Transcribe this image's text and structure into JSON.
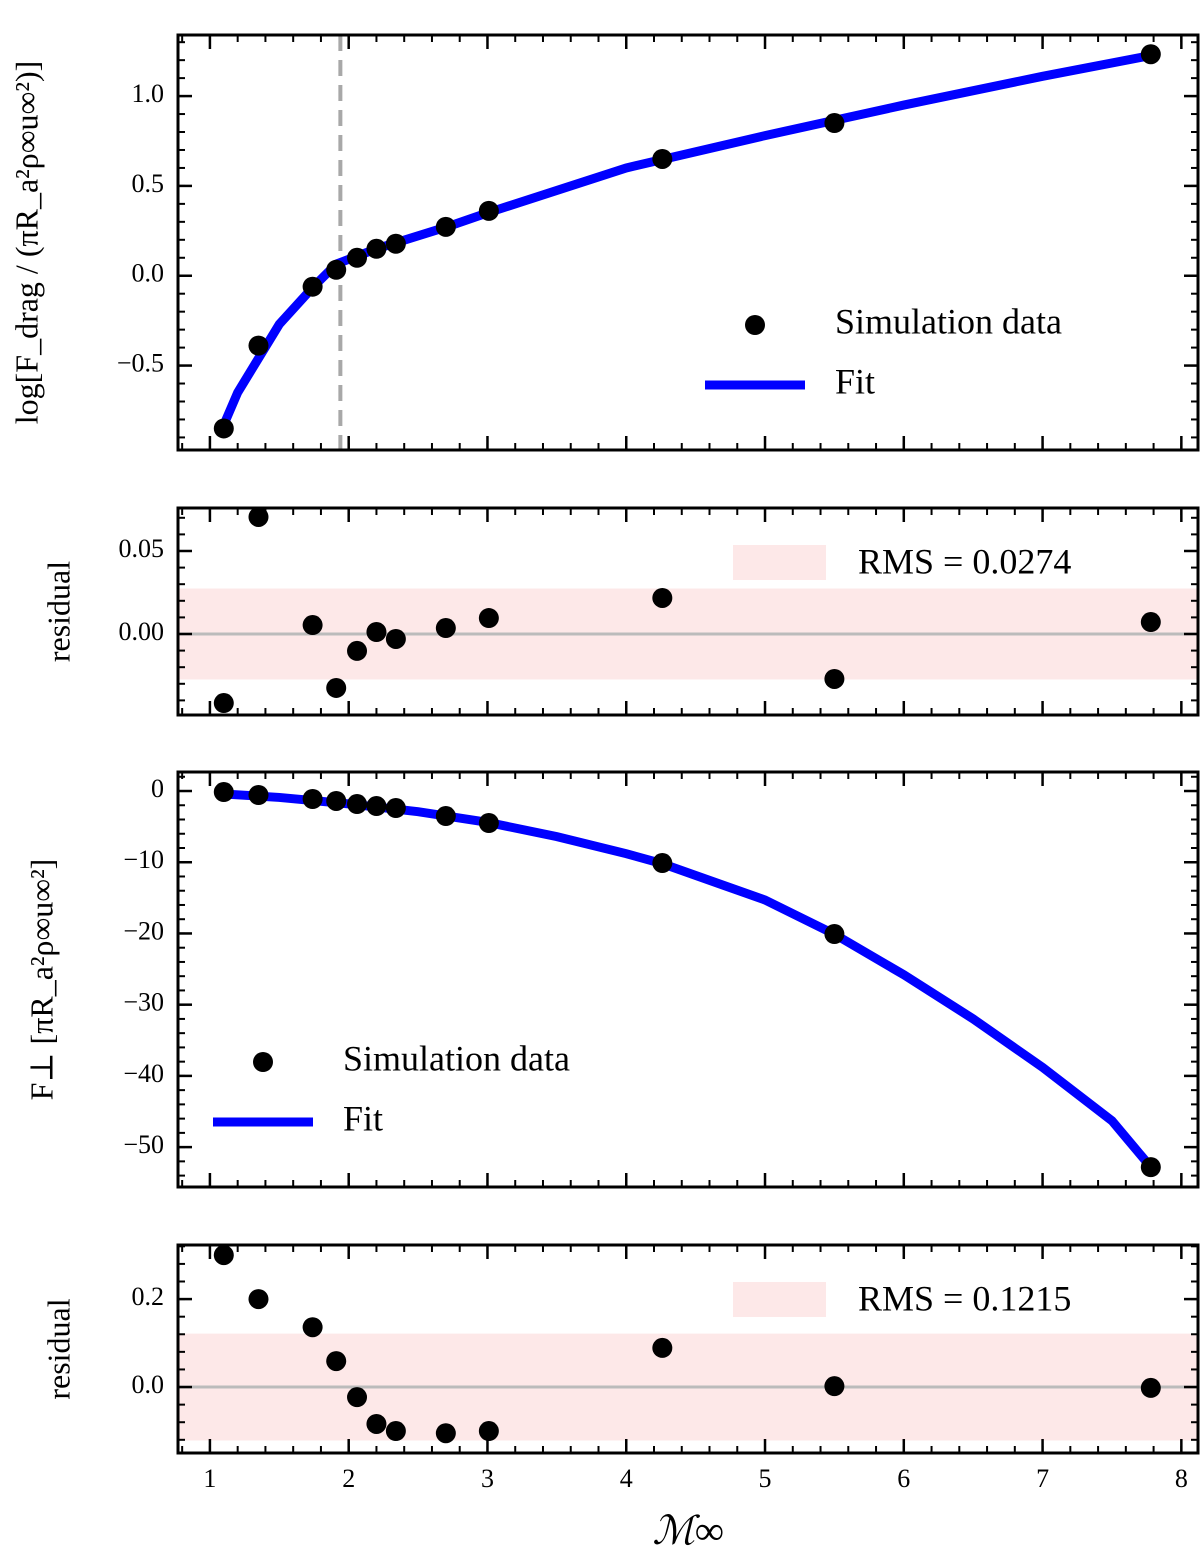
{
  "chart_data": [
    {
      "type": "scatter",
      "ylabel": "log[F_drag / (πR_a²ρ∞u∞²)]",
      "xlim": [
        0.77,
        8.12
      ],
      "xticks": [
        1,
        2,
        3,
        4,
        5,
        6,
        7,
        8
      ],
      "ylim": [
        -0.97,
        1.34
      ],
      "yticks": [
        {
          "value": -0.5,
          "label": "−0.5"
        },
        {
          "value": 0,
          "label": "0.0"
        },
        0.5,
        {
          "value": 1,
          "label": "1.0"
        }
      ],
      "vline": 1.94,
      "vline_color": "#a8a8a8",
      "legend": "lower right",
      "series": [
        {
          "name": "Simulation data",
          "mode": "markers",
          "color": "#000000",
          "x": [
            1.1,
            1.35,
            1.74,
            1.91,
            2.06,
            2.2,
            2.34,
            2.7,
            3.01,
            4.26,
            5.5,
            7.78
          ],
          "values": [
            -0.85,
            -0.389,
            -0.061,
            0.033,
            0.1,
            0.15,
            0.178,
            0.272,
            0.361,
            0.65,
            0.85,
            1.233
          ]
        },
        {
          "name": "Fit",
          "mode": "line",
          "color": "#0000ff",
          "x": [
            1.1,
            1.2,
            1.35,
            1.5,
            1.74,
            1.91,
            2.2,
            2.7,
            3.0,
            4.0,
            5.0,
            6.0,
            7.0,
            7.78
          ],
          "values": [
            -0.83,
            -0.65,
            -0.46,
            -0.27,
            -0.066,
            0.065,
            0.15,
            0.27,
            0.35,
            0.6,
            0.78,
            0.95,
            1.11,
            1.226
          ]
        }
      ]
    },
    {
      "type": "residual",
      "ylabel": "residual",
      "xlim": [
        0.77,
        8.12
      ],
      "xticks": [
        1,
        2,
        3,
        4,
        5,
        6,
        7,
        8
      ],
      "ylim": [
        -0.0488,
        0.0759
      ],
      "yticks": [
        {
          "value": 0,
          "label": "0.00"
        },
        0.05
      ],
      "hline": 0,
      "rms": 0.0274,
      "rms_label": "RMS = 0.0274",
      "band_color": "#fde8e8",
      "legend": "upper right",
      "series": [
        {
          "mode": "markers",
          "color": "#000000",
          "x": [
            1.1,
            1.35,
            1.74,
            1.91,
            2.06,
            2.2,
            2.34,
            2.7,
            3.01,
            4.26,
            5.5,
            7.78
          ],
          "values": [
            -0.0416,
            0.0705,
            0.0054,
            -0.0325,
            -0.0102,
            0.0012,
            -0.003,
            0.0036,
            0.0096,
            0.0217,
            -0.0271,
            0.0072
          ]
        }
      ]
    },
    {
      "type": "scatter",
      "ylabel": "F⊥ [πR_a²ρ∞u∞²]",
      "xlim": [
        0.77,
        8.12
      ],
      "xticks": [
        1,
        2,
        3,
        4,
        5,
        6,
        7,
        8
      ],
      "ylim": [
        -55.6,
        2.67
      ],
      "yticks": [
        {
          "value": -50,
          "label": "−50"
        },
        {
          "value": -40,
          "label": "−40"
        },
        {
          "value": -30,
          "label": "−30"
        },
        {
          "value": -20,
          "label": "−20"
        },
        {
          "value": -10,
          "label": "−10"
        },
        0
      ],
      "legend": "lower left",
      "series": [
        {
          "name": "Simulation data",
          "mode": "markers",
          "color": "#000000",
          "x": [
            1.1,
            1.35,
            1.74,
            1.91,
            2.06,
            2.2,
            2.34,
            2.7,
            3.01,
            4.26,
            5.5,
            7.78
          ],
          "values": [
            -0.14,
            -0.56,
            -1.12,
            -1.4,
            -1.83,
            -2.11,
            -2.39,
            -3.51,
            -4.49,
            -10.11,
            -20.08,
            -52.81
          ]
        },
        {
          "name": "Fit",
          "mode": "line",
          "color": "#0000ff",
          "x": [
            1.1,
            1.5,
            2.0,
            2.5,
            3.0,
            3.5,
            4.0,
            4.26,
            5.0,
            5.5,
            6.0,
            6.5,
            7.0,
            7.5,
            7.78
          ],
          "values": [
            -0.42,
            -0.9,
            -1.8,
            -2.9,
            -4.4,
            -6.4,
            -8.8,
            -10.2,
            -15.3,
            -20.1,
            -25.8,
            -32.0,
            -38.8,
            -46.3,
            -52.8
          ]
        }
      ]
    },
    {
      "type": "residual",
      "ylabel": "residual",
      "xlabel": "ℳ∞",
      "xlim": [
        0.77,
        8.12
      ],
      "xticks": [
        1,
        2,
        3,
        4,
        5,
        6,
        7,
        8
      ],
      "ylim": [
        -0.15,
        0.323
      ],
      "yticks": [
        {
          "value": 0,
          "label": "0.0"
        },
        0.2
      ],
      "hline": 0,
      "rms": 0.1215,
      "rms_label": "RMS = 0.1215",
      "band_color": "#fde8e8",
      "legend": "upper right",
      "series": [
        {
          "mode": "markers",
          "color": "#000000",
          "x": [
            1.1,
            1.35,
            1.74,
            1.91,
            2.06,
            2.2,
            2.34,
            2.7,
            3.01,
            4.26,
            5.5,
            7.78
          ],
          "values": [
            0.3,
            0.2,
            0.136,
            0.059,
            -0.023,
            -0.084,
            -0.1,
            -0.105,
            -0.1,
            0.089,
            0.002,
            -0.002
          ]
        }
      ]
    }
  ]
}
